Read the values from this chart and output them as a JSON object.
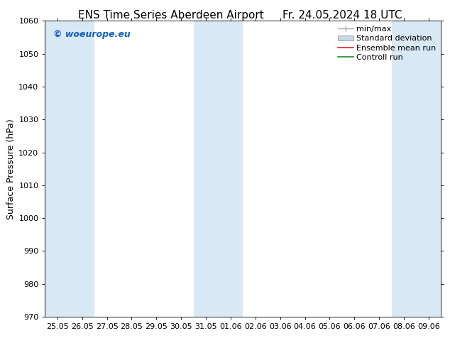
{
  "title": "ENS Time Series Aberdeen Airport",
  "title_right": "Fr. 24.05.2024 18 UTC",
  "ylabel": "Surface Pressure (hPa)",
  "ylim": [
    970,
    1060
  ],
  "yticks": [
    970,
    980,
    990,
    1000,
    1010,
    1020,
    1030,
    1040,
    1050,
    1060
  ],
  "x_tick_labels": [
    "25.05",
    "26.05",
    "27.05",
    "28.05",
    "29.05",
    "30.05",
    "31.05",
    "01.06",
    "02.06",
    "03.06",
    "04.06",
    "05.06",
    "06.06",
    "07.06",
    "08.06",
    "09.06"
  ],
  "shaded_indices": [
    0,
    1,
    6,
    7,
    14,
    15
  ],
  "shaded_color": "#d8e8f5",
  "background_color": "#ffffff",
  "watermark": "© woeurope.eu",
  "watermark_color": "#1060c0",
  "legend_items": [
    {
      "label": "min/max",
      "color": "#aaaaaa",
      "type": "errorbar"
    },
    {
      "label": "Standard deviation",
      "color": "#c8d8e8",
      "type": "box"
    },
    {
      "label": "Ensemble mean run",
      "color": "#dd2222",
      "type": "line"
    },
    {
      "label": "Controll run",
      "color": "#228822",
      "type": "line"
    }
  ],
  "title_fontsize": 11,
  "ylabel_fontsize": 9,
  "tick_fontsize": 8,
  "legend_fontsize": 8
}
